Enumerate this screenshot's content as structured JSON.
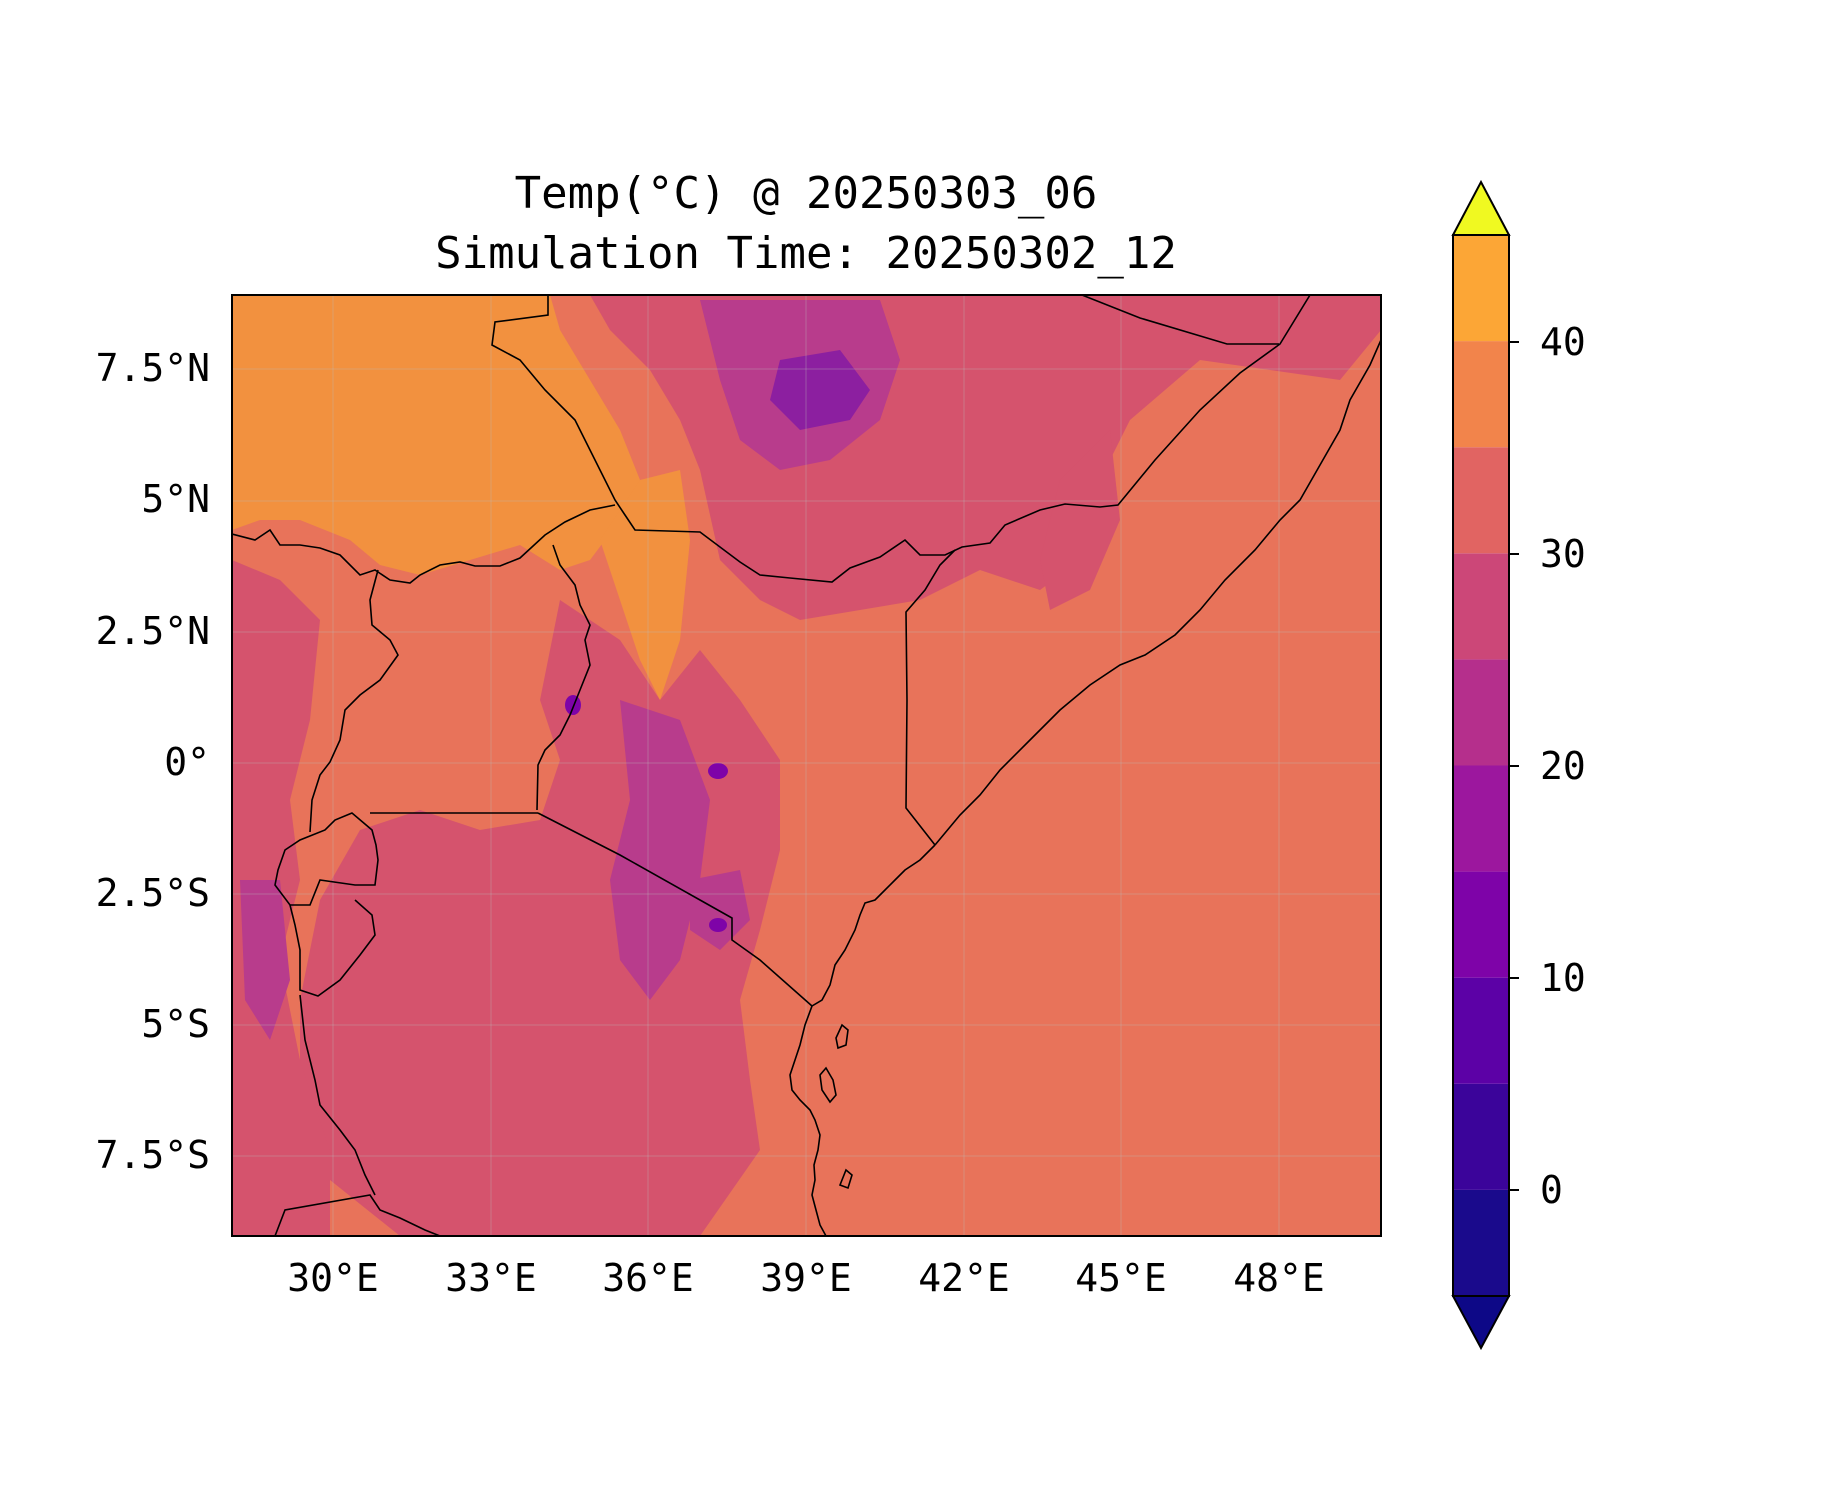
{
  "title_line1": "Temp(°C) @ 20250303_06",
  "title_line2": "Simulation Time: 20250302_12",
  "map": {
    "lon_ticks": [
      "30°E",
      "33°E",
      "36°E",
      "39°E",
      "42°E",
      "45°E",
      "48°E"
    ],
    "lat_ticks": [
      "7.5°N",
      "5°N",
      "2.5°N",
      "0°",
      "2.5°S",
      "5°S",
      "7.5°S"
    ],
    "extent": {
      "lon_min": 28.1,
      "lon_max": 50.0,
      "lat_min": -9.0,
      "lat_max": 9.0
    }
  },
  "colorbar": {
    "ticks": [
      "40",
      "30",
      "20",
      "10",
      "0"
    ],
    "levels": [
      -5,
      0,
      5,
      10,
      15,
      20,
      25,
      30,
      35,
      40,
      45
    ],
    "colors": [
      "#1a0a8c",
      "#3b049a",
      "#5c01a6",
      "#7e03a8",
      "#9c179e",
      "#b52f8c",
      "#cc4778",
      "#e16462",
      "#f2844b",
      "#fca636",
      "#f0f921"
    ],
    "extend": "both"
  },
  "colors": {
    "field_base": "#e8735a",
    "warm_band": "#f2913f",
    "mild_band": "#d5536d",
    "cool_band": "#b83c8c",
    "cold_band": "#8c1fa0",
    "border": "#000000"
  }
}
